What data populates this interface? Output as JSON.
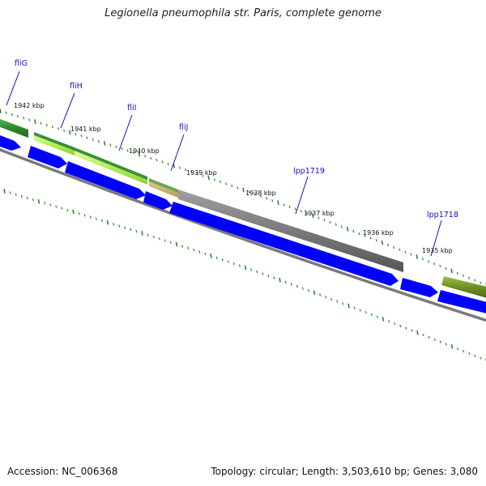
{
  "title": "Legionella pneumophila str. Paris, complete genome",
  "footer": {
    "accession": "Accession: NC_006368",
    "summary": "Topology: circular; Length: 3,503,610 bp; Genes: 3,080"
  },
  "scale_labels": [
    "1942 kbp",
    "1941 kbp",
    "1940 kbp",
    "1939 kbp",
    "1938 kbp",
    "1937 kbp",
    "1936 kbp",
    "1935 kbp"
  ],
  "gene_labels": [
    "fliG",
    "fliH",
    "fliI",
    "fliJ",
    "lpp1719",
    "lpp1718"
  ],
  "colors": {
    "cds_blue": "#0000ff",
    "backbone_grey": "#808080",
    "feature_green": "#2e8b2e",
    "feature_light_green": "#a8e85a",
    "feature_grey": "#707070",
    "feature_olive": "#6b8e23",
    "tick_green": "#2a8a2a",
    "label_blue": "#1010c8"
  }
}
